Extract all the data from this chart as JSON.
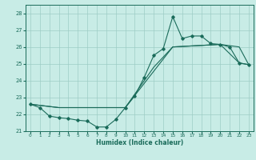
{
  "xlabel": "Humidex (Indice chaleur)",
  "ylabel": "",
  "xlim": [
    -0.5,
    23.5
  ],
  "ylim": [
    21.0,
    28.5
  ],
  "yticks": [
    21,
    22,
    23,
    24,
    25,
    26,
    27,
    28
  ],
  "xticks": [
    0,
    1,
    2,
    3,
    4,
    5,
    6,
    7,
    8,
    9,
    10,
    11,
    12,
    13,
    14,
    15,
    16,
    17,
    18,
    19,
    20,
    21,
    22,
    23
  ],
  "bg_color": "#c8ece6",
  "grid_color": "#9dcdc5",
  "line_color": "#1a6b5a",
  "line1_x": [
    0,
    1,
    2,
    3,
    4,
    5,
    6,
    7,
    8,
    9,
    10,
    11,
    12,
    13,
    14,
    15,
    16,
    17,
    18,
    19,
    20,
    21,
    22,
    23
  ],
  "line1_y": [
    22.6,
    22.4,
    21.9,
    21.8,
    21.75,
    21.65,
    21.6,
    21.25,
    21.25,
    21.7,
    22.4,
    23.1,
    24.2,
    25.5,
    25.9,
    27.8,
    26.5,
    26.65,
    26.65,
    26.2,
    26.15,
    26.0,
    25.05,
    24.95
  ],
  "line2_x": [
    0,
    3,
    10,
    15,
    20,
    22,
    23
  ],
  "line2_y": [
    22.6,
    22.4,
    22.4,
    26.0,
    26.15,
    25.05,
    24.95
  ],
  "line3_x": [
    0,
    3,
    10,
    13,
    15,
    20,
    22,
    23
  ],
  "line3_y": [
    22.6,
    22.4,
    22.4,
    24.8,
    26.0,
    26.15,
    26.0,
    24.95
  ]
}
